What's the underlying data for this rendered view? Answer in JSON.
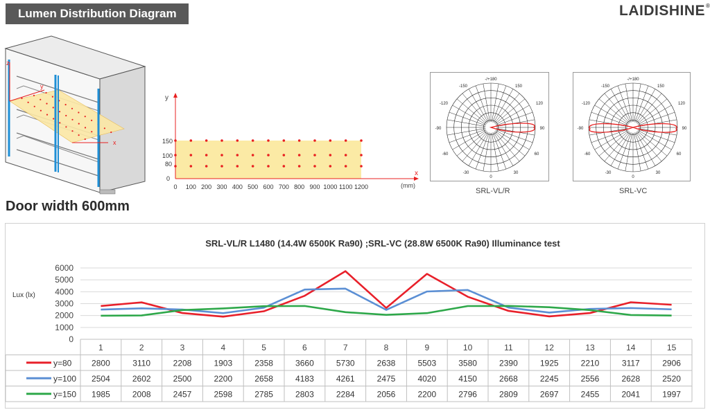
{
  "header": {
    "title": "Lumen Distribution Diagram",
    "logo": "LAIDISHINE",
    "logo_mark": "®"
  },
  "cabinet": {
    "axis_z": "z",
    "axis_y": "y",
    "axis_x": "x"
  },
  "door_width": "Door width 600mm",
  "grid": {
    "y_axis_label": "y",
    "x_axis_label": "x",
    "unit": "(mm)",
    "y_ticks": [
      "150",
      "100",
      "80",
      "0"
    ],
    "x_ticks": [
      "0",
      "100",
      "200",
      "300",
      "400",
      "500",
      "600",
      "700",
      "800",
      "900",
      "1000",
      "1100",
      "1200"
    ]
  },
  "polar": [
    {
      "caption": "SRL-VL/R"
    },
    {
      "caption": "SRL-VC"
    }
  ],
  "polar_labels": {
    "top": "-/+180",
    "l150": "-150",
    "r150": "150",
    "l120": "-120",
    "r120": "120",
    "l90": "-90",
    "r90": "90",
    "l60": "-60",
    "r60": "60",
    "l30": "-30",
    "r30": "30",
    "bottom": "0"
  },
  "chart_data": {
    "type": "line",
    "title": "SRL-VL/R L1480 (14.4W 6500K Ra90) ;SRL-VC (28.8W 6500K Ra90) Illuminance test",
    "ylabel": "Lux (lx)",
    "ylim": [
      0,
      6000
    ],
    "y_ticks": [
      "6000",
      "5000",
      "4000",
      "3000",
      "2000",
      "1000",
      "0"
    ],
    "categories": [
      "1",
      "2",
      "3",
      "4",
      "5",
      "6",
      "7",
      "8",
      "9",
      "10",
      "11",
      "12",
      "13",
      "14",
      "15"
    ],
    "series": [
      {
        "name": "y=80",
        "color": "#e8202a",
        "values": [
          2800,
          3110,
          2208,
          1903,
          2358,
          3660,
          5730,
          2638,
          5503,
          3580,
          2390,
          1925,
          2210,
          3117,
          2906
        ],
        "labels": [
          "2800",
          "3110",
          "2208",
          "1903",
          "2358",
          "3660",
          "5730",
          "2638",
          "5503",
          "3580",
          "2390",
          "1925",
          "2210",
          "3117",
          "2906"
        ]
      },
      {
        "name": "y=100",
        "color": "#5b8fd4",
        "values": [
          2504,
          2602,
          2500,
          2200,
          2658,
          4183,
          4261,
          2475,
          4020,
          4150,
          2668,
          2245,
          2556,
          2628,
          2520
        ],
        "labels": [
          "2504",
          "2602",
          "2500",
          "2200",
          "2658",
          "4183",
          "4261",
          "2475",
          "4020",
          "4150",
          "2668",
          "2245",
          "2556",
          "2628",
          "2520"
        ]
      },
      {
        "name": "y=150",
        "color": "#2ea84a",
        "values": [
          1985,
          2008,
          2457,
          2598,
          2785,
          2803,
          2284,
          2056,
          2200,
          2796,
          2809,
          2697,
          2455,
          2041,
          1997
        ],
        "labels": [
          "1985",
          "2008",
          "2457",
          "2598",
          "2785",
          "2803",
          "2284",
          "2056",
          "2200",
          "2796",
          "2809",
          "2697",
          "2455",
          "2041",
          "1997"
        ]
      }
    ],
    "grid": true,
    "legend": "data-table-left"
  }
}
